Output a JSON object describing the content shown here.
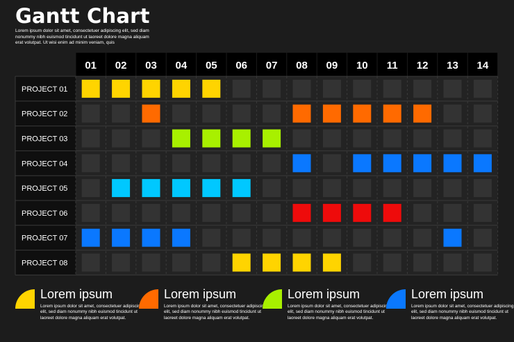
{
  "page": {
    "title": "Gantt Chart",
    "subtitle": "Lorem ipsum dolor sit amet, consectetuer adipiscing elit, sed diam nonummy nibh euismod tincidunt ut laoreet dolore magna aliquam erat volutpat. Ut wisi enim ad minim veniam, quis"
  },
  "colors": {
    "background": "#1c1c1c",
    "header_cell": "#000000",
    "row_label_cell": "#0f0f0f",
    "cell_bg": "#232323",
    "empty_square": "#333333",
    "yellow": "#ffd400",
    "orange": "#ff6a00",
    "lime": "#a8f000",
    "blue": "#0a78ff",
    "cyan": "#00c8ff",
    "red": "#ee0b0b"
  },
  "chart_data": {
    "type": "table",
    "title": "Gantt Chart",
    "columns": [
      "01",
      "02",
      "03",
      "04",
      "05",
      "06",
      "07",
      "08",
      "09",
      "10",
      "11",
      "12",
      "13",
      "14"
    ],
    "rows": [
      {
        "name": "PROJECT 01",
        "color": "#ffd400",
        "active": [
          "01",
          "02",
          "03",
          "04",
          "05"
        ]
      },
      {
        "name": "PROJECT 02",
        "color": "#ff6a00",
        "active": [
          "03",
          "08",
          "09",
          "10",
          "11",
          "12"
        ]
      },
      {
        "name": "PROJECT 03",
        "color": "#a8f000",
        "active": [
          "04",
          "05",
          "06",
          "07"
        ]
      },
      {
        "name": "PROJECT 04",
        "color": "#0a78ff",
        "active": [
          "08",
          "10",
          "11",
          "12",
          "13",
          "14"
        ]
      },
      {
        "name": "PROJECT 05",
        "color": "#00c8ff",
        "active": [
          "02",
          "03",
          "04",
          "05",
          "06"
        ]
      },
      {
        "name": "PROJECT 06",
        "color": "#ee0b0b",
        "active": [
          "08",
          "09",
          "10",
          "11"
        ]
      },
      {
        "name": "PROJECT 07",
        "color": "#0a78ff",
        "active": [
          "01",
          "02",
          "03",
          "04",
          "13"
        ]
      },
      {
        "name": "PROJECT 08",
        "color": "#ffd400",
        "active": [
          "06",
          "07",
          "08",
          "09"
        ]
      }
    ]
  },
  "legend": [
    {
      "title": "Lorem ipsum",
      "color": "#ffd400",
      "text": "Lorem ipsum dolor sit amet, consectetuer adipiscing elit, sed diam nonummy nibh euismod tincidunt ut laoreet dolore magna aliquam erat volutpat."
    },
    {
      "title": "Lorem ipsum",
      "color": "#ff6a00",
      "text": "Lorem ipsum dolor sit amet, consectetuer adipiscing elit, sed diam nonummy nibh euismod tincidunt ut laoreet dolore magna aliquam erat volutpat."
    },
    {
      "title": "Lorem ipsum",
      "color": "#a8f000",
      "text": "Lorem ipsum dolor sit amet, consectetuer adipiscing elit, sed diam nonummy nibh euismod tincidunt ut laoreet dolore magna aliquam erat volutpat."
    },
    {
      "title": "Lorem ipsum",
      "color": "#0a78ff",
      "text": "Lorem ipsum dolor sit amet, consectetuer adipiscing elit, sed diam nonummy nibh euismod tincidunt ut laoreet dolore magna aliquam erat volutpat."
    }
  ]
}
